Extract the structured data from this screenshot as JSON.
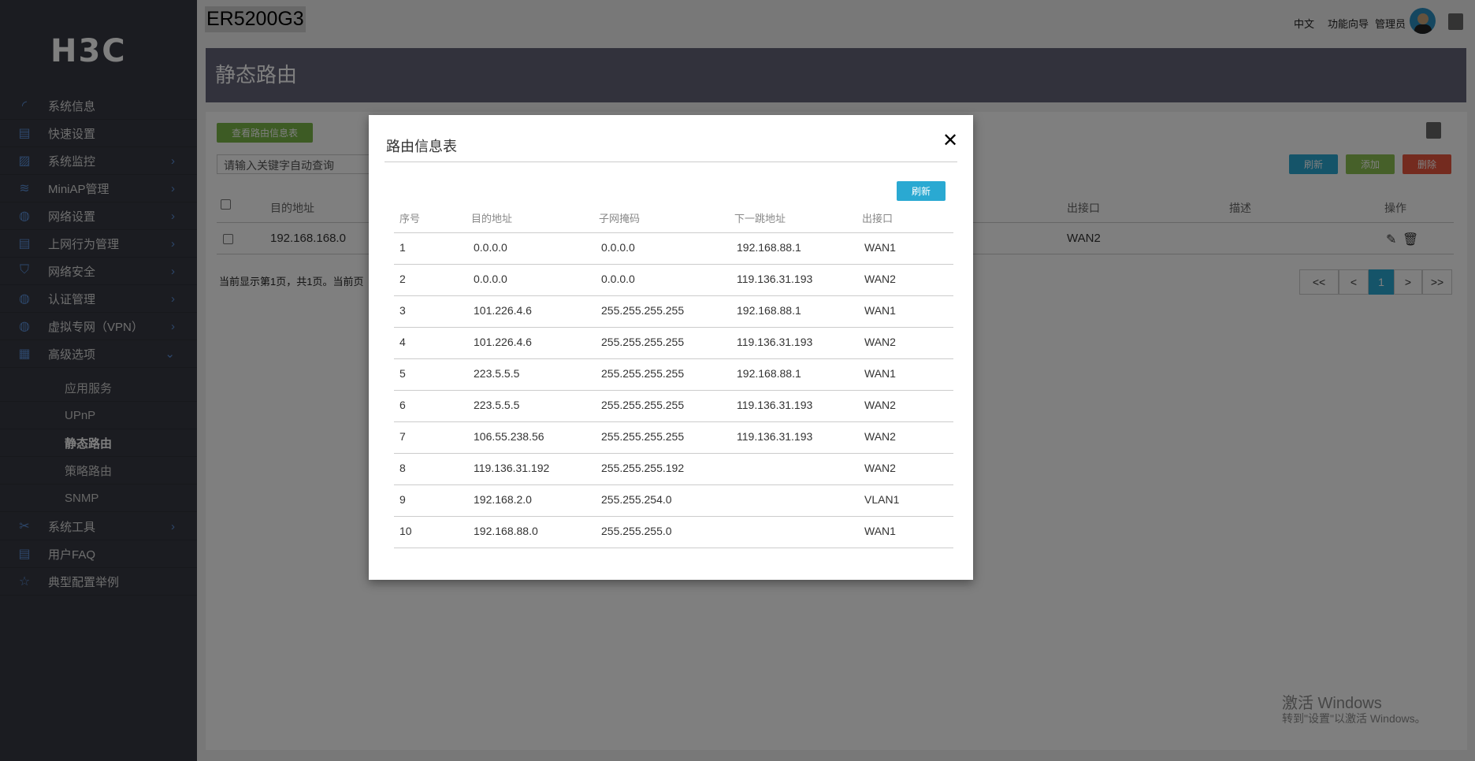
{
  "brand": "H3C",
  "device_title": "ER5200G3",
  "topbar": {
    "language": "中文",
    "wizard": "功能向导",
    "user": "管理员"
  },
  "sidebar": {
    "items": [
      {
        "label": "系统信息",
        "icon": "gauge-icon",
        "chevron": false
      },
      {
        "label": "快速设置",
        "icon": "document-edit-icon",
        "chevron": false
      },
      {
        "label": "系统监控",
        "icon": "monitor-chart-icon",
        "chevron": true
      },
      {
        "label": "MiniAP管理",
        "icon": "wifi-icon",
        "chevron": true
      },
      {
        "label": "网络设置",
        "icon": "globe-icon",
        "chevron": true
      },
      {
        "label": "上网行为管理",
        "icon": "document-user-icon",
        "chevron": true
      },
      {
        "label": "网络安全",
        "icon": "shield-icon",
        "chevron": true
      },
      {
        "label": "认证管理",
        "icon": "globe-user-icon",
        "chevron": true
      },
      {
        "label": "虚拟专网（VPN）",
        "icon": "globe-lock-icon",
        "chevron": true
      },
      {
        "label": "高级选项",
        "icon": "grid-search-icon",
        "chevron": "down"
      }
    ],
    "subitems": [
      "应用服务",
      "UPnP",
      "静态路由",
      "策略路由",
      "SNMP"
    ],
    "active_sub": "静态路由",
    "bottom_items": [
      {
        "label": "系统工具",
        "icon": "tools-icon",
        "chevron": true
      },
      {
        "label": "用户FAQ",
        "icon": "faq-document-icon",
        "chevron": false
      },
      {
        "label": "典型配置举例",
        "icon": "star-document-icon",
        "chevron": false
      }
    ]
  },
  "page": {
    "title": "静态路由",
    "view_table_button": "查看路由信息表",
    "search_placeholder": "请输入关键字自动查询",
    "refresh": "刷新",
    "add": "添加",
    "delete": "删除",
    "columns": {
      "dest": "目的地址",
      "iface": "出接口",
      "desc": "描述",
      "ops": "操作"
    },
    "row": {
      "dest": "192.168.168.0",
      "iface": "WAN2"
    },
    "status": "当前显示第1页，共1页。当前页",
    "pager": [
      "<<",
      "<",
      "1",
      ">",
      ">>"
    ],
    "current_page": "1"
  },
  "modal": {
    "title": "路由信息表",
    "refresh": "刷新",
    "headers": [
      "序号",
      "目的地址",
      "子网掩码",
      "下一跳地址",
      "出接口"
    ],
    "rows": [
      [
        "1",
        "0.0.0.0",
        "0.0.0.0",
        "192.168.88.1",
        "WAN1"
      ],
      [
        "2",
        "0.0.0.0",
        "0.0.0.0",
        "119.136.31.193",
        "WAN2"
      ],
      [
        "3",
        "101.226.4.6",
        "255.255.255.255",
        "192.168.88.1",
        "WAN1"
      ],
      [
        "4",
        "101.226.4.6",
        "255.255.255.255",
        "119.136.31.193",
        "WAN2"
      ],
      [
        "5",
        "223.5.5.5",
        "255.255.255.255",
        "192.168.88.1",
        "WAN1"
      ],
      [
        "6",
        "223.5.5.5",
        "255.255.255.255",
        "119.136.31.193",
        "WAN2"
      ],
      [
        "7",
        "106.55.238.56",
        "255.255.255.255",
        "119.136.31.193",
        "WAN2"
      ],
      [
        "8",
        "119.136.31.192",
        "255.255.255.192",
        "",
        "WAN2"
      ],
      [
        "9",
        "192.168.2.0",
        "255.255.254.0",
        "",
        "VLAN1"
      ],
      [
        "10",
        "192.168.88.0",
        "255.255.255.0",
        "",
        "WAN1"
      ]
    ]
  },
  "watermark": {
    "line1": "激活 Windows",
    "line2": "转到\"设置\"以激活 Windows。"
  },
  "colors": {
    "refresh": "#2aa9d2",
    "add": "#8cc152",
    "delete": "#e9573f",
    "view_button": "#7ab648",
    "page_active": "#2aa9d2"
  }
}
